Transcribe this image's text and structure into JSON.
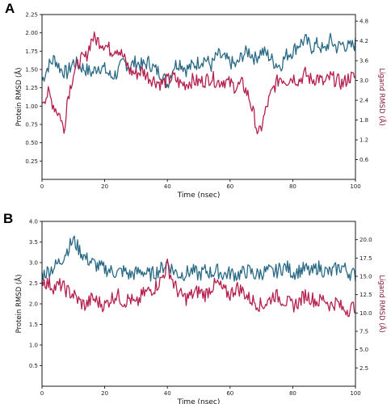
{
  "chart_data": [
    {
      "panel_label": "A",
      "type": "line",
      "xlabel": "Time (nsec)",
      "ylabel_left": "Protein RMSD (Å)",
      "ylabel_right": "Ligand RMSD (Å)",
      "xlim": [
        0,
        100
      ],
      "ylim_left": [
        0,
        2.25
      ],
      "ylim_right": [
        0,
        5.0
      ],
      "x_ticks": [
        "0",
        "20",
        "40",
        "60",
        "80",
        "100"
      ],
      "y_ticks_left": [
        "0.25",
        "0.50",
        "0.75",
        "1.00",
        "1.25",
        "1.50",
        "1.75",
        "2.00",
        "2.25"
      ],
      "y_ticks_right": [
        "0.6",
        "1.2",
        "1.8",
        "2.4",
        "3.0",
        "3.6",
        "4.2",
        "4.8"
      ],
      "grid": false,
      "series": [
        {
          "axis": "left",
          "color": "#2b6a86",
          "x": [
            0,
            2,
            4,
            6,
            8,
            10,
            12,
            14,
            16,
            18,
            20,
            22,
            24,
            26,
            28,
            30,
            32,
            34,
            36,
            38,
            40,
            42,
            44,
            46,
            48,
            50,
            52,
            54,
            56,
            58,
            60,
            62,
            64,
            66,
            68,
            70,
            72,
            74,
            76,
            78,
            80,
            82,
            84,
            86,
            88,
            90,
            92,
            94,
            96,
            98,
            100
          ],
          "values": [
            1.35,
            1.55,
            1.65,
            1.5,
            1.45,
            1.6,
            1.55,
            1.5,
            1.45,
            1.55,
            1.5,
            1.4,
            1.45,
            1.6,
            1.55,
            1.6,
            1.55,
            1.6,
            1.5,
            1.45,
            1.3,
            1.55,
            1.6,
            1.5,
            1.55,
            1.6,
            1.65,
            1.55,
            1.7,
            1.65,
            1.6,
            1.55,
            1.7,
            1.75,
            1.65,
            1.75,
            1.7,
            1.6,
            1.55,
            1.7,
            1.75,
            1.85,
            1.9,
            1.8,
            1.85,
            1.75,
            1.9,
            1.8,
            1.85,
            1.8,
            1.85
          ]
        },
        {
          "axis": "right",
          "color": "#b5214f",
          "x": [
            0,
            2,
            4,
            6,
            7,
            8,
            10,
            12,
            14,
            16,
            18,
            20,
            22,
            24,
            26,
            28,
            30,
            32,
            34,
            36,
            38,
            40,
            42,
            44,
            46,
            48,
            50,
            52,
            54,
            56,
            58,
            60,
            62,
            64,
            66,
            68,
            69,
            70,
            72,
            74,
            76,
            78,
            80,
            82,
            84,
            86,
            88,
            90,
            92,
            94,
            96,
            98,
            100
          ],
          "values": [
            2.4,
            2.6,
            2.2,
            1.9,
            1.4,
            2.4,
            3.2,
            3.6,
            3.7,
            4.3,
            4.2,
            4.1,
            3.9,
            4.0,
            3.7,
            3.3,
            3.2,
            3.3,
            3.1,
            3.0,
            2.9,
            3.0,
            3.1,
            2.9,
            2.9,
            3.0,
            2.95,
            3.0,
            3.1,
            2.95,
            3.0,
            2.9,
            2.8,
            2.9,
            2.5,
            1.8,
            1.3,
            1.6,
            2.3,
            2.8,
            3.1,
            3.0,
            3.1,
            3.0,
            3.2,
            3.0,
            3.1,
            2.9,
            3.1,
            3.0,
            2.9,
            3.1,
            3.1
          ]
        }
      ]
    },
    {
      "panel_label": "B",
      "type": "line",
      "xlabel": "Time (nsec)",
      "ylabel_left": "Protein RMSD (Å)",
      "ylabel_right": "Ligand RMSD (Å)",
      "xlim": [
        0,
        100
      ],
      "ylim_left": [
        0,
        4.0
      ],
      "ylim_right": [
        0,
        22.5
      ],
      "x_ticks": [
        "0",
        "20",
        "40",
        "60",
        "80",
        "100"
      ],
      "y_ticks_left": [
        "0.5",
        "1.0",
        "1.5",
        "2.0",
        "2.5",
        "3.0",
        "3.5",
        "4.0"
      ],
      "y_ticks_right": [
        "2.5",
        "5.0",
        "7.5",
        "10.0",
        "12.5",
        "15.0",
        "17.5",
        "20.0"
      ],
      "grid": false,
      "series": [
        {
          "axis": "left",
          "color": "#2b6a86",
          "x": [
            0,
            2,
            4,
            6,
            8,
            10,
            12,
            14,
            16,
            18,
            20,
            22,
            24,
            26,
            28,
            30,
            32,
            34,
            36,
            38,
            40,
            42,
            44,
            46,
            48,
            50,
            52,
            54,
            56,
            58,
            60,
            62,
            64,
            66,
            68,
            70,
            72,
            74,
            76,
            78,
            80,
            82,
            84,
            86,
            88,
            90,
            92,
            94,
            96,
            98,
            100
          ],
          "values": [
            2.7,
            2.8,
            2.9,
            3.05,
            3.3,
            3.55,
            3.3,
            3.1,
            3.0,
            2.9,
            2.85,
            2.8,
            2.75,
            2.8,
            2.7,
            2.75,
            2.8,
            2.7,
            2.75,
            2.85,
            3.0,
            2.8,
            2.7,
            2.75,
            2.8,
            2.7,
            2.8,
            2.75,
            2.8,
            2.7,
            2.75,
            2.7,
            2.75,
            2.8,
            2.7,
            2.75,
            2.8,
            2.75,
            2.85,
            2.9,
            2.75,
            2.8,
            2.85,
            2.75,
            2.9,
            2.8,
            2.75,
            2.85,
            2.9,
            2.75,
            2.7
          ]
        },
        {
          "axis": "right",
          "color": "#b5214f",
          "x": [
            0,
            2,
            4,
            6,
            8,
            10,
            12,
            14,
            16,
            18,
            20,
            22,
            24,
            26,
            28,
            30,
            32,
            34,
            36,
            38,
            40,
            42,
            44,
            46,
            48,
            50,
            52,
            54,
            56,
            58,
            60,
            62,
            64,
            66,
            68,
            70,
            72,
            74,
            76,
            78,
            80,
            82,
            84,
            86,
            88,
            90,
            92,
            94,
            96,
            98,
            100
          ],
          "values": [
            14.5,
            14.0,
            13.5,
            13.8,
            13.0,
            12.5,
            11.5,
            11.0,
            12.0,
            11.5,
            11.0,
            12.0,
            12.5,
            11.5,
            12.0,
            11.0,
            12.5,
            13.0,
            13.5,
            14.5,
            16.5,
            14.0,
            12.5,
            12.0,
            12.5,
            13.0,
            12.5,
            13.5,
            14.0,
            13.0,
            12.5,
            13.5,
            13.0,
            12.0,
            11.5,
            11.0,
            11.5,
            12.5,
            12.0,
            11.5,
            11.0,
            11.5,
            12.5,
            12.0,
            11.5,
            12.0,
            11.0,
            11.5,
            10.5,
            10.5,
            11.0
          ]
        }
      ]
    }
  ]
}
